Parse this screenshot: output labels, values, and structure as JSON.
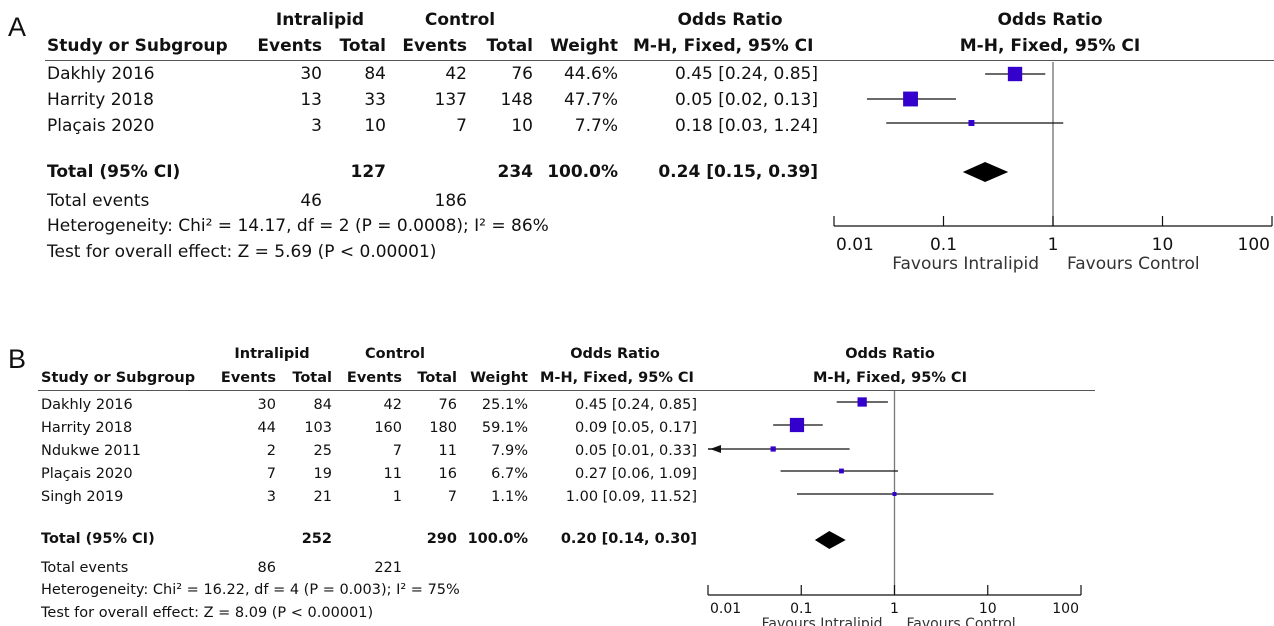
{
  "chart_data": [
    {
      "type": "forest",
      "panel": "A",
      "columns": {
        "group1": "Intralipid",
        "group2": "Control",
        "study": "Study or Subgroup",
        "events": "Events",
        "total": "Total",
        "weight": "Weight",
        "or": "Odds Ratio",
        "method": "M-H, Fixed, 95% CI"
      },
      "studies": [
        {
          "name": "Dakhly 2016",
          "e1": "30",
          "t1": "84",
          "e2": "42",
          "t2": "76",
          "weight": "44.6%",
          "ci": "0.45 [0.24, 0.85]",
          "or": 0.45,
          "lo": 0.24,
          "hi": 0.85,
          "w": 44.6
        },
        {
          "name": "Harrity 2018",
          "e1": "13",
          "t1": "33",
          "e2": "137",
          "t2": "148",
          "weight": "47.7%",
          "ci": "0.05 [0.02, 0.13]",
          "or": 0.05,
          "lo": 0.02,
          "hi": 0.13,
          "w": 47.7
        },
        {
          "name": "Plaçais 2020",
          "e1": "3",
          "t1": "10",
          "e2": "7",
          "t2": "10",
          "weight": "7.7%",
          "ci": "0.18 [0.03, 1.24]",
          "or": 0.18,
          "lo": 0.03,
          "hi": 1.24,
          "w": 7.7
        }
      ],
      "total": {
        "label": "Total (95% CI)",
        "t1": "127",
        "t2": "234",
        "weight": "100.0%",
        "ci": "0.24 [0.15, 0.39]",
        "or": 0.24,
        "lo": 0.15,
        "hi": 0.39
      },
      "total_events": {
        "label": "Total events",
        "e1": "46",
        "e2": "186"
      },
      "heterogeneity": "Heterogeneity: Chi² = 14.17, df = 2 (P = 0.0008); I² = 86%",
      "overall_effect": "Test for overall effect: Z = 5.69 (P < 0.00001)",
      "axis": {
        "scale": "log",
        "ticks": [
          0.01,
          0.1,
          1,
          10,
          100
        ],
        "tick_labels": [
          "0.01",
          "0.1",
          "1",
          "10",
          "100"
        ],
        "xlim": [
          0.01,
          100
        ]
      },
      "favours_left": "Favours Intralipid",
      "favours_right": "Favours Control",
      "marker_color": "#3300cc"
    },
    {
      "type": "forest",
      "panel": "B",
      "columns": {
        "group1": "Intralipid",
        "group2": "Control",
        "study": "Study or Subgroup",
        "events": "Events",
        "total": "Total",
        "weight": "Weight",
        "or": "Odds Ratio",
        "method": "M-H, Fixed, 95% CI"
      },
      "studies": [
        {
          "name": "Dakhly 2016",
          "e1": "30",
          "t1": "84",
          "e2": "42",
          "t2": "76",
          "weight": "25.1%",
          "ci": "0.45 [0.24, 0.85]",
          "or": 0.45,
          "lo": 0.24,
          "hi": 0.85,
          "w": 25.1
        },
        {
          "name": "Harrity 2018",
          "e1": "44",
          "t1": "103",
          "e2": "160",
          "t2": "180",
          "weight": "59.1%",
          "ci": "0.09 [0.05, 0.17]",
          "or": 0.09,
          "lo": 0.05,
          "hi": 0.17,
          "w": 59.1
        },
        {
          "name": "Ndukwe 2011",
          "e1": "2",
          "t1": "25",
          "e2": "7",
          "t2": "11",
          "weight": "7.9%",
          "ci": "0.05 [0.01, 0.33]",
          "or": 0.05,
          "lo": 0.01,
          "hi": 0.33,
          "w": 7.9
        },
        {
          "name": "Plaçais 2020",
          "e1": "7",
          "t1": "19",
          "e2": "11",
          "t2": "16",
          "weight": "6.7%",
          "ci": "0.27 [0.06, 1.09]",
          "or": 0.27,
          "lo": 0.06,
          "hi": 1.09,
          "w": 6.7
        },
        {
          "name": "Singh 2019",
          "e1": "3",
          "t1": "21",
          "e2": "1",
          "t2": "7",
          "weight": "1.1%",
          "ci": "1.00 [0.09, 11.52]",
          "or": 1.0,
          "lo": 0.09,
          "hi": 11.52,
          "w": 1.1
        }
      ],
      "total": {
        "label": "Total (95% CI)",
        "t1": "252",
        "t2": "290",
        "weight": "100.0%",
        "ci": "0.20 [0.14, 0.30]",
        "or": 0.2,
        "lo": 0.14,
        "hi": 0.3
      },
      "total_events": {
        "label": "Total events",
        "e1": "86",
        "e2": "221"
      },
      "heterogeneity": "Heterogeneity: Chi² = 16.22, df = 4 (P = 0.003); I² = 75%",
      "overall_effect": "Test for overall effect: Z = 8.09 (P < 0.00001)",
      "axis": {
        "scale": "log",
        "ticks": [
          0.01,
          0.1,
          1,
          10,
          100
        ],
        "tick_labels": [
          "0.01",
          "0.1",
          "1",
          "10",
          "100"
        ],
        "xlim": [
          0.01,
          100
        ]
      },
      "favours_left": "Favours Intralipid",
      "favours_right": "Favours Control",
      "marker_color": "#3300cc"
    }
  ]
}
